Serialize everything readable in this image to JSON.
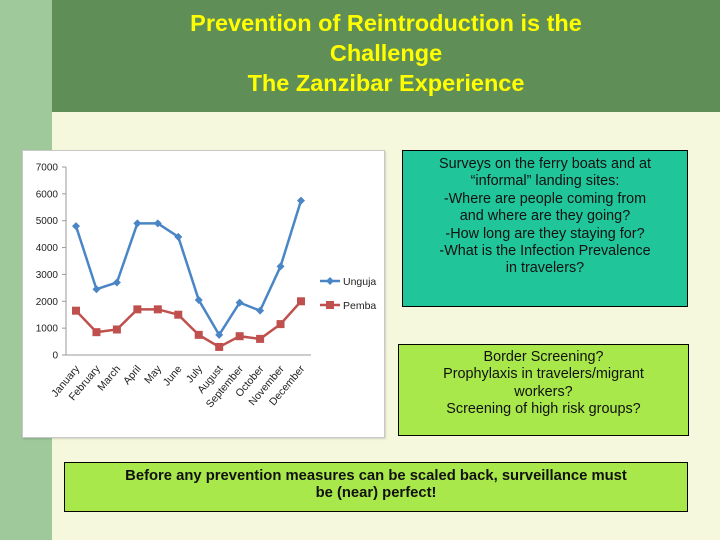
{
  "title_lines": [
    "Prevention of Reintroduction is the",
    "Challenge",
    "The Zanzibar Experience"
  ],
  "box1_lines": [
    "Surveys on the ferry boats and at",
    "“informal” landing sites:",
    "-Where are people coming from",
    "and where are they going?",
    "-How long are they staying for?",
    "-What is the Infection Prevalence",
    "in travelers?"
  ],
  "box2_lines": [
    "Border Screening?",
    "Prophylaxis in travelers/migrant",
    "workers?",
    "Screening of high risk groups?"
  ],
  "box3_lines": [
    "Before any prevention measures can be scaled back, surveillance must",
    "be (near) perfect!"
  ],
  "colors": {
    "header": "#5f8f57",
    "title": "#ffff00",
    "box1": "#21c59a",
    "box2": "#a8e84a",
    "unguja": "#4a86c6",
    "pemba": "#c0504d"
  },
  "chart_data": {
    "type": "line",
    "categories": [
      "January",
      "February",
      "March",
      "April",
      "May",
      "June",
      "July",
      "August",
      "September",
      "October",
      "November",
      "December"
    ],
    "series": [
      {
        "name": "Unguja",
        "color": "#4a86c6",
        "marker": "diamond",
        "values": [
          4800,
          2450,
          2700,
          4900,
          4900,
          4400,
          2050,
          750,
          1950,
          1650,
          3300,
          5750
        ]
      },
      {
        "name": "Pemba",
        "color": "#c0504d",
        "marker": "square",
        "values": [
          1650,
          850,
          950,
          1700,
          1700,
          1500,
          750,
          300,
          700,
          600,
          1150,
          2000
        ]
      }
    ],
    "yticks": [
      "0",
      "1000",
      "2000",
      "3000",
      "4000",
      "5000",
      "6000",
      "7000"
    ],
    "ylim": [
      0,
      7000
    ],
    "grid": false,
    "legend": "right"
  }
}
